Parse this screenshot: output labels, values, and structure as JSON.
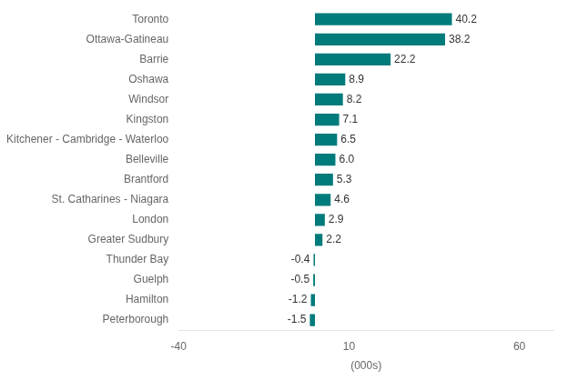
{
  "chart_data": {
    "type": "bar",
    "orientation": "horizontal",
    "categories": [
      "Toronto",
      "Ottawa-Gatineau",
      "Barrie",
      "Oshawa",
      "Windsor",
      "Kingston",
      "Kitchener - Cambridge - Waterloo",
      "Belleville",
      "Brantford",
      "St. Catharines - Niagara",
      "London",
      "Greater Sudbury",
      "Thunder Bay",
      "Guelph",
      "Hamilton",
      "Peterborough"
    ],
    "values": [
      40.2,
      38.2,
      22.2,
      8.9,
      8.2,
      7.1,
      6.5,
      6.0,
      5.3,
      4.6,
      2.9,
      2.2,
      -0.4,
      -0.5,
      -1.2,
      -1.5
    ],
    "value_labels": [
      "40.2",
      "38.2",
      "22.2",
      "8.9",
      "8.2",
      "7.1",
      "6.5",
      "6.0",
      "5.3",
      "4.6",
      "2.9",
      "2.2",
      "-0.4",
      "-0.5",
      "-1.2",
      "-1.5"
    ],
    "color": "#007b7b",
    "xlabel": "(000s)",
    "xlim": [
      -40,
      70
    ],
    "xticks": [
      -40,
      10,
      60
    ],
    "data_labels": true,
    "grid": false
  }
}
